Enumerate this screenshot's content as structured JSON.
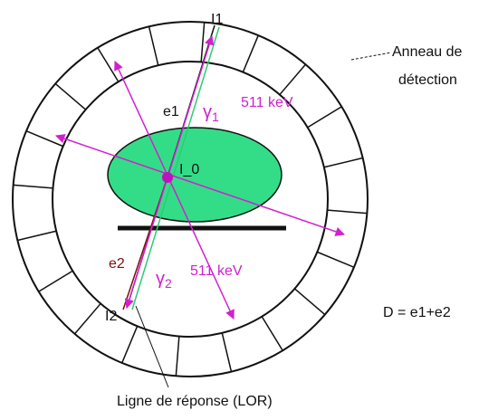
{
  "labels": {
    "i1": "I1",
    "ring": [
      "Anneau de",
      "détection"
    ],
    "e1": "e1",
    "gamma1": {
      "symbol": "γ",
      "sub": "1"
    },
    "energy1": "511 keV",
    "i0": "I_0",
    "e2": "e2",
    "gamma2": {
      "symbol": "γ",
      "sub": "2"
    },
    "energy2": "511 keV",
    "i2": "I2",
    "formula": "D = e1+e2",
    "lor": "Ligne de réponse (LOR)"
  }
}
